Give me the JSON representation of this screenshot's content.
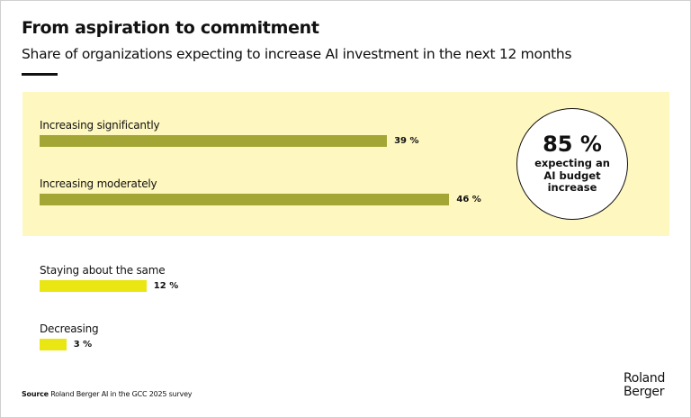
{
  "title": "From aspiration to commitment",
  "subtitle": "Share of organizations expecting to increase AI investment in the next 12 months",
  "chart_data": {
    "type": "bar",
    "orientation": "horizontal",
    "categories": [
      "Increasing significantly",
      "Increasing moderately",
      "Staying about the same",
      "Decreasing"
    ],
    "values": [
      39,
      46,
      12,
      3
    ],
    "value_labels": [
      "39 %",
      "46 %",
      "12 %",
      "3 %"
    ],
    "unit": "%",
    "colors": [
      "#a3a535",
      "#a3a535",
      "#eae614",
      "#eae614"
    ],
    "highlight_band_color": "#fef7c0",
    "grid": false
  },
  "callout": {
    "value": "85 %",
    "text": "expecting an AI budget increase"
  },
  "source": {
    "label": "Source",
    "text": "Roland Berger AI in the GCC 2025 survey"
  },
  "logo": {
    "line1": "Roland",
    "line2": "Berger"
  }
}
